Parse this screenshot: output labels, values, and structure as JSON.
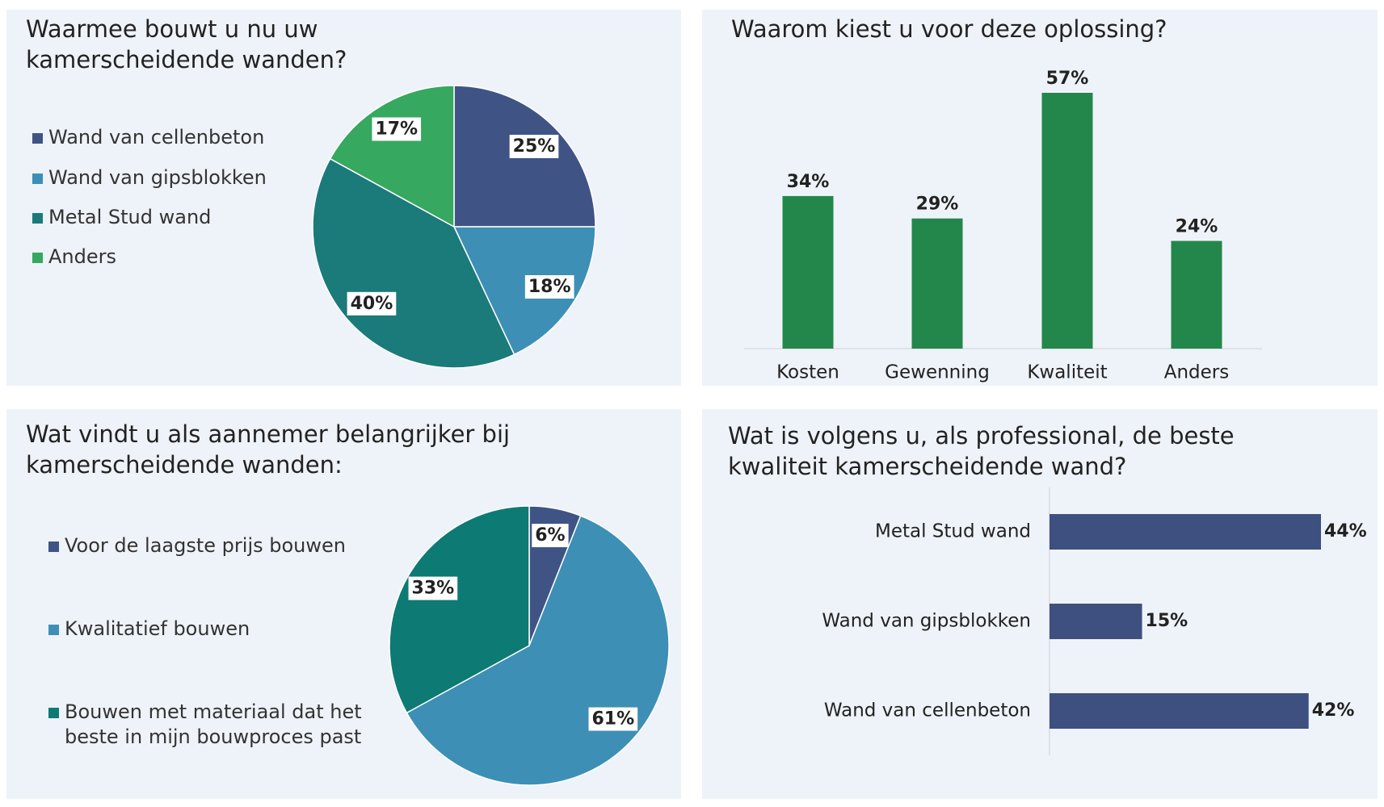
{
  "chart_data": [
    {
      "type": "pie",
      "title": "Waarmee bouwt u nu uw kamerscheidende wanden?",
      "categories": [
        "Wand van cellenbeton",
        "Wand van gipsblokken",
        "Metal Stud wand",
        "Anders"
      ],
      "values": [
        25,
        18,
        40,
        17
      ],
      "value_labels": [
        "25%",
        "18%",
        "40%",
        "17%"
      ],
      "colors": [
        "#3f5485",
        "#3d8fb5",
        "#1b7a7a",
        "#36a85f"
      ],
      "legend": "left"
    },
    {
      "type": "bar",
      "title": "Waarom kiest u voor deze oplossing?",
      "categories": [
        "Kosten",
        "Gewenning",
        "Kwaliteit",
        "Anders"
      ],
      "values": [
        34,
        29,
        57,
        24
      ],
      "value_labels": [
        "34%",
        "29%",
        "57%",
        "24%"
      ],
      "color": "#23874b"
    },
    {
      "type": "pie",
      "title": "Wat vindt u als aannemer belangrijker bij kamerscheidende wanden:",
      "categories": [
        "Voor de laagste prijs bouwen",
        "Kwalitatief bouwen",
        "Bouwen met materiaal dat het beste in mijn bouwproces past"
      ],
      "values": [
        6,
        61,
        33
      ],
      "value_labels": [
        "6%",
        "61%",
        "33%"
      ],
      "colors": [
        "#3f5485",
        "#3d8fb5",
        "#0d7a74"
      ],
      "legend": "left"
    },
    {
      "type": "hbar",
      "title": "Wat is volgens u, als professional, de beste kwaliteit kamerscheidende wand?",
      "categories": [
        "Metal Stud wand",
        "Wand van gipsblokken",
        "Wand van cellenbeton"
      ],
      "values": [
        44,
        15,
        42
      ],
      "value_labels": [
        "44%",
        "15%",
        "42%"
      ],
      "color": "#3d5080"
    }
  ]
}
